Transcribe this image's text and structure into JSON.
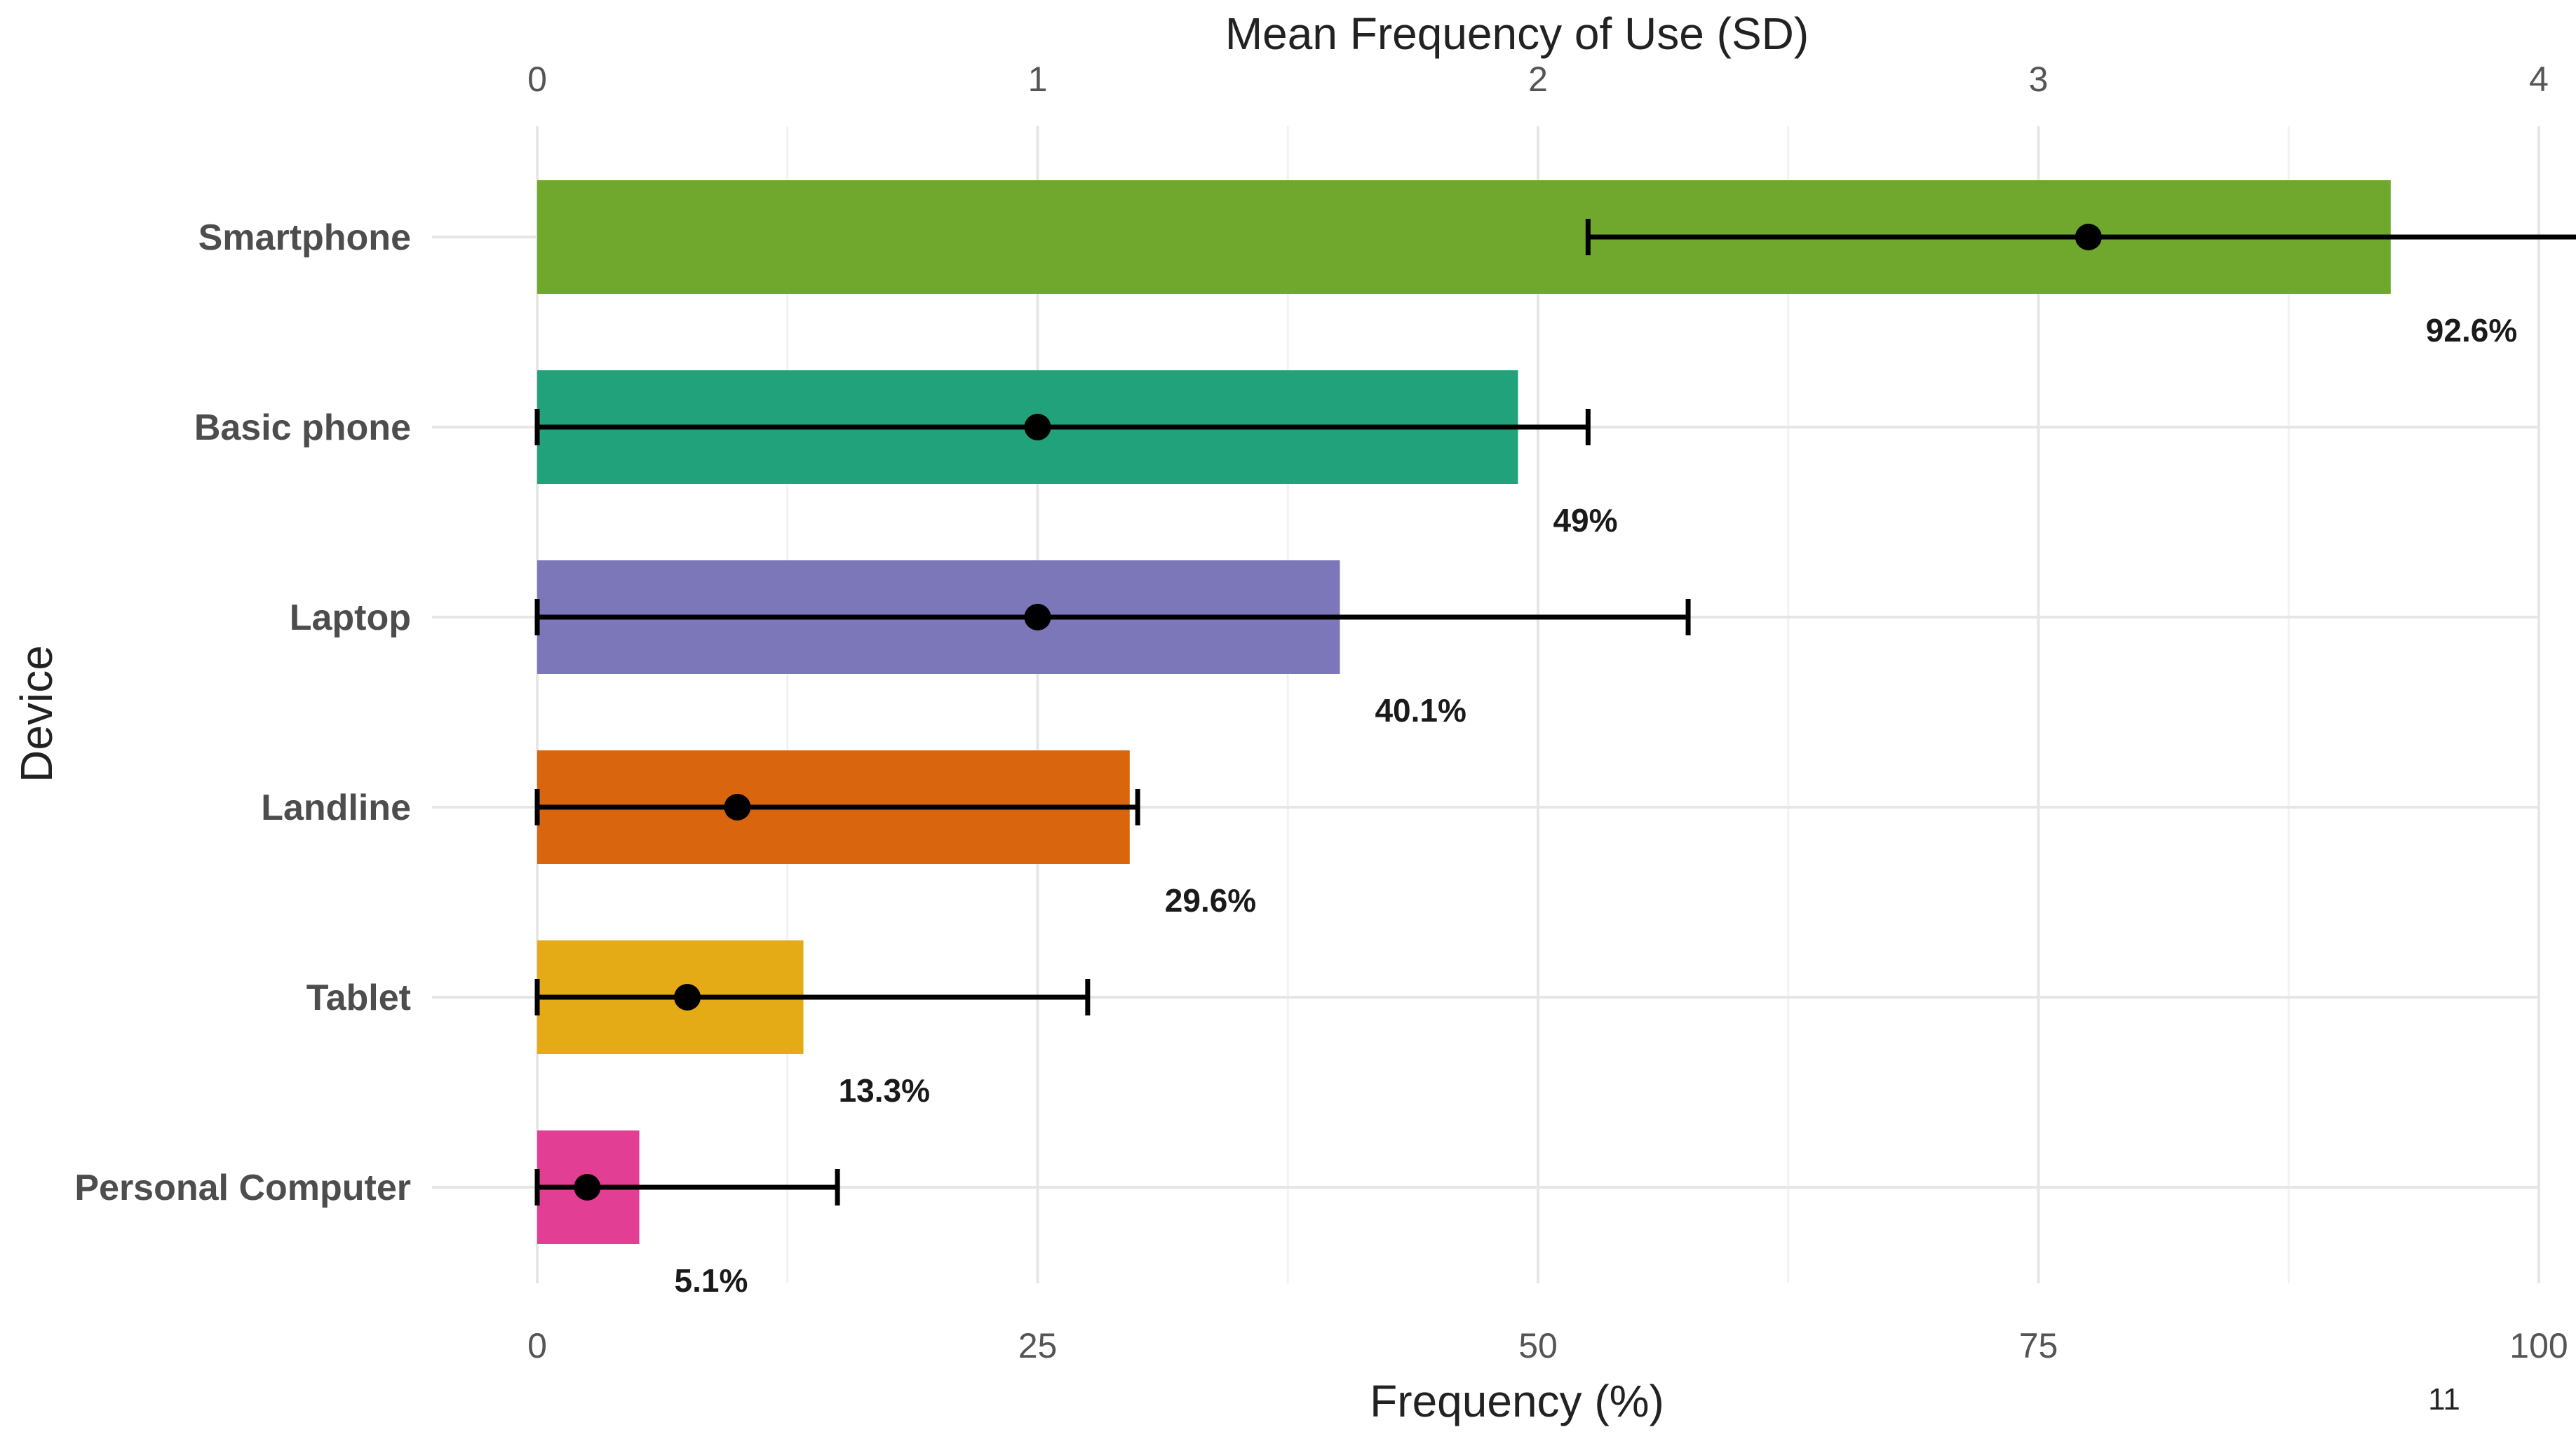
{
  "chart_data": {
    "type": "bar",
    "orientation": "horizontal",
    "categories": [
      "Smartphone",
      "Basic phone",
      "Laptop",
      "Landline",
      "Tablet",
      "Personal Computer"
    ],
    "series": [
      {
        "values": [
          92.6,
          49,
          40.1,
          29.6,
          13.3,
          5.1
        ],
        "labels": [
          "92.6%",
          "49%",
          "40.1%",
          "29.6%",
          "13.3%",
          "5.1%"
        ],
        "colors": [
          "#6fa82c",
          "#22a27a",
          "#7b77b8",
          "#d9650f",
          "#e4ab17",
          "#e23e94"
        ]
      }
    ],
    "mean_frequency": {
      "means": [
        3.1,
        1.0,
        1.0,
        0.4,
        0.3,
        0.1
      ],
      "sd_low": [
        2.1,
        0.0,
        0.0,
        0.0,
        0.0,
        0.0
      ],
      "sd_high": [
        4.1,
        2.1,
        2.3,
        1.2,
        1.1,
        0.6
      ]
    },
    "xlabel": "Frequency (%)",
    "ylabel": "Device",
    "x2label": "Mean Frequency of Use (SD)",
    "xlim": [
      0,
      100
    ],
    "x2lim": [
      0,
      4
    ],
    "xticks": [
      "0",
      "25",
      "50",
      "75",
      "100"
    ],
    "x2ticks": [
      "0",
      "1",
      "2",
      "3",
      "4"
    ],
    "grid": true,
    "legend": "none"
  },
  "page_number": "11"
}
